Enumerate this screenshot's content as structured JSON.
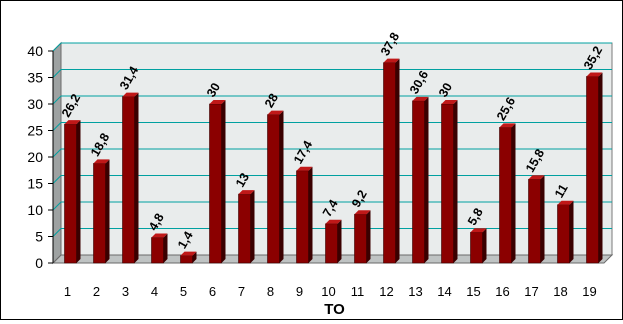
{
  "chart_data": {
    "type": "bar",
    "categories": [
      "1",
      "2",
      "3",
      "4",
      "5",
      "6",
      "7",
      "8",
      "9",
      "10",
      "11",
      "12",
      "13",
      "14",
      "15",
      "16",
      "17",
      "18",
      "19"
    ],
    "values": [
      26.2,
      18.8,
      31.4,
      4.8,
      1.4,
      30,
      13,
      28,
      17.4,
      7.4,
      9.2,
      37.8,
      30.6,
      30,
      5.8,
      25.6,
      15.8,
      11,
      35.2
    ],
    "data_labels": [
      "26,2",
      "18,8",
      "31,4",
      "4,8",
      "1,4",
      "30",
      "13",
      "28",
      "17,4",
      "7,4",
      "9,2",
      "37,8",
      "30,6",
      "30",
      "5,8",
      "25,6",
      "15,8",
      "11",
      "35,2"
    ],
    "y_ticks": [
      "0",
      "5",
      "10",
      "15",
      "20",
      "25",
      "30",
      "35",
      "40"
    ],
    "xlabel": "TO",
    "ylabel": "",
    "title": "",
    "ylim": [
      0,
      40
    ],
    "grid": true,
    "legend": "none",
    "colors": {
      "bar_front": "#8b0000",
      "bar_side": "#3a0000",
      "bar_top": "#c01818",
      "plot_wall": "#e9ecec",
      "plot_floor": "#bfc3c3",
      "grid_line": "#00a0a0"
    }
  }
}
